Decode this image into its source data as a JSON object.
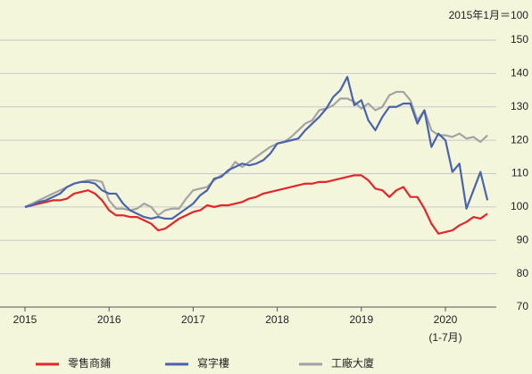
{
  "chart_data": {
    "type": "line",
    "annotations": [
      "2015年1月＝100",
      "(1-7月)"
    ],
    "categories": [
      "2015",
      null,
      null,
      null,
      null,
      null,
      null,
      null,
      null,
      null,
      null,
      null,
      "2016",
      null,
      null,
      null,
      null,
      null,
      null,
      null,
      null,
      null,
      null,
      null,
      "2017",
      null,
      null,
      null,
      null,
      null,
      null,
      null,
      null,
      null,
      null,
      null,
      "2018",
      null,
      null,
      null,
      null,
      null,
      null,
      null,
      null,
      null,
      null,
      null,
      "2019",
      null,
      null,
      null,
      null,
      null,
      null,
      null,
      null,
      null,
      null,
      null,
      "2020",
      null,
      null,
      null,
      null,
      null,
      null
    ],
    "series": [
      {
        "name": "零售商鋪",
        "color": "#e3262a",
        "values": [
          100,
          100.5,
          101,
          101.5,
          102,
          102,
          102.5,
          104,
          104.5,
          105,
          104,
          102,
          99,
          97.5,
          97.5,
          97,
          97,
          96,
          95,
          93,
          93.5,
          95,
          96.5,
          97.5,
          98.5,
          99,
          100.5,
          100,
          100.5,
          100.5,
          101,
          101.5,
          102.5,
          103,
          104,
          104.5,
          105,
          105.5,
          106,
          106.5,
          107,
          107,
          107.5,
          107.5,
          108,
          108.5,
          109,
          109.5,
          109.5,
          108,
          105.5,
          105,
          103,
          105,
          106,
          103,
          103,
          99.5,
          95,
          92,
          92.5,
          93,
          94.5,
          95.5,
          97,
          96.5,
          98
        ]
      },
      {
        "name": "寫字樓",
        "color": "#4a63ad",
        "values": [
          100,
          100.5,
          101.5,
          102,
          103,
          104,
          106,
          107,
          107.5,
          107.5,
          107,
          105,
          104,
          104,
          101,
          99,
          98,
          97,
          96.5,
          97,
          96.5,
          96.5,
          98,
          99.5,
          101,
          103.5,
          105,
          108.5,
          109,
          111,
          112,
          113,
          112.5,
          113,
          114,
          116,
          119,
          119.5,
          120,
          120.5,
          123,
          125,
          127,
          129.5,
          133,
          135,
          139,
          130.5,
          132,
          126,
          123,
          127,
          130,
          130,
          131,
          131,
          125,
          129,
          118,
          122,
          120,
          110.5,
          113,
          99.5,
          105,
          110.5,
          102
        ]
      },
      {
        "name": "工廠大廈",
        "color": "#a3a3a3",
        "values": [
          100,
          101,
          102,
          103,
          104,
          105,
          106,
          107,
          107.5,
          108,
          108,
          107.5,
          102,
          99.5,
          99.5,
          99,
          99.5,
          101,
          100,
          97.5,
          99,
          99.5,
          99.5,
          102.5,
          105,
          105.5,
          106,
          108,
          109.5,
          110.5,
          113.5,
          112,
          113.5,
          115,
          116.5,
          118,
          119,
          119.5,
          121,
          123,
          125,
          126,
          129,
          129.5,
          130.5,
          132.5,
          132.5,
          131.5,
          129.5,
          131,
          129,
          130,
          133.5,
          134.5,
          134.5,
          132,
          126,
          129,
          123,
          121.5,
          121.5,
          121,
          122,
          120.5,
          121,
          119.5,
          121.5
        ]
      }
    ],
    "ylim": [
      70,
      150
    ],
    "yticks": [
      70,
      80,
      90,
      100,
      110,
      120,
      130,
      140,
      150
    ],
    "grid": true
  }
}
